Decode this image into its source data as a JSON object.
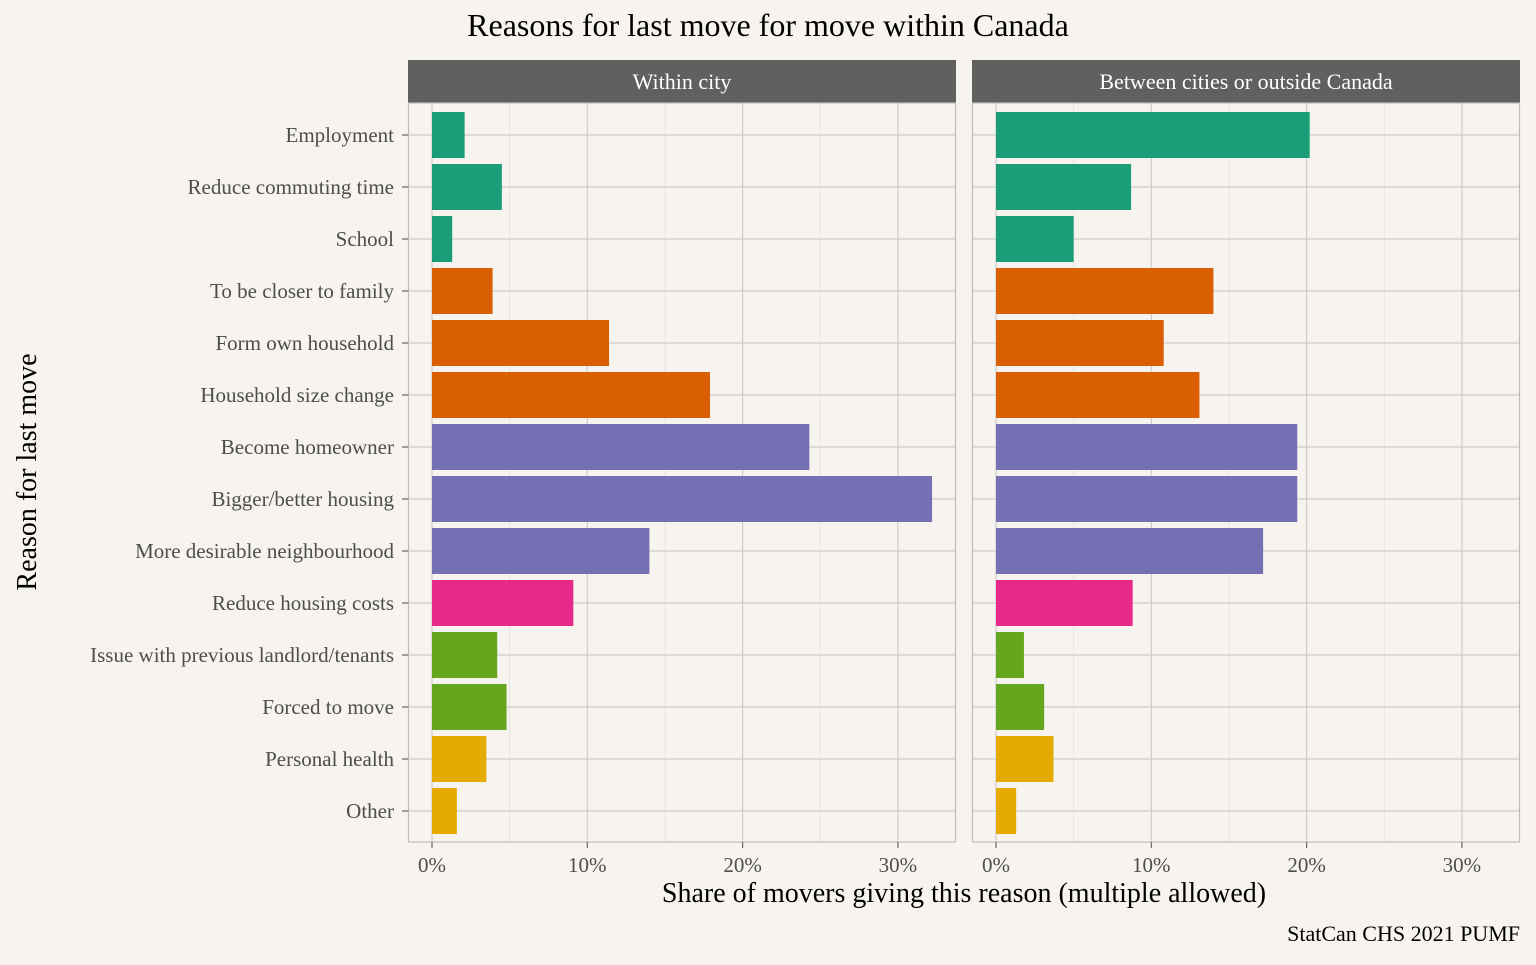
{
  "chart_data": {
    "type": "bar",
    "orientation": "horizontal",
    "title": "Reasons for last move for move within Canada",
    "xlabel": "Share of movers giving this reason (multiple allowed)",
    "ylabel": "Reason for last move",
    "caption": "StatCan CHS 2021 PUMF",
    "xlim": [
      0,
      0.33
    ],
    "x_ticks": [
      0,
      0.1,
      0.2,
      0.3
    ],
    "x_tick_labels": [
      "0%",
      "10%",
      "20%",
      "30%"
    ],
    "grid": true,
    "categories": [
      "Employment",
      "Reduce commuting time",
      "School",
      "To be closer to family",
      "Form own household",
      "Household size change",
      "Become homeowner",
      "Bigger/better housing",
      "More desirable neighbourhood",
      "Reduce housing costs",
      "Issue with previous landlord/tenants",
      "Forced to move",
      "Personal health",
      "Other"
    ],
    "bar_colors": [
      "#1b9e77",
      "#1b9e77",
      "#1b9e77",
      "#d95f02",
      "#d95f02",
      "#d95f02",
      "#7570b3",
      "#7570b3",
      "#7570b3",
      "#e7298a",
      "#66a61e",
      "#66a61e",
      "#e6ab02",
      "#e6ab02"
    ],
    "panels": [
      {
        "label": "Within city",
        "values": [
          0.021,
          0.045,
          0.013,
          0.039,
          0.114,
          0.179,
          0.243,
          0.322,
          0.14,
          0.091,
          0.042,
          0.048,
          0.035,
          0.016
        ]
      },
      {
        "label": "Between cities or outside Canada",
        "values": [
          0.202,
          0.087,
          0.05,
          0.14,
          0.108,
          0.131,
          0.194,
          0.194,
          0.172,
          0.088,
          0.018,
          0.031,
          0.037,
          0.013
        ]
      }
    ]
  },
  "colors": {
    "background": "#f7f4ef",
    "strip": "#606060",
    "strip_text": "#ffffff",
    "grid": "#cccccc",
    "text": "#000000",
    "tick_text": "#4d4d4d"
  }
}
